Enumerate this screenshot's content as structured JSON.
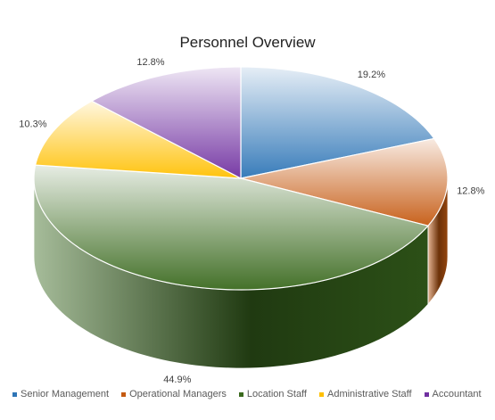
{
  "chart_data": {
    "type": "pie",
    "style": "3d-gradient",
    "title": "Personnel Overview",
    "categories": [
      "Senior Management",
      "Operational Managers",
      "Location Staff",
      "Administrative Staff",
      "Accountant"
    ],
    "values": [
      19.2,
      12.8,
      44.9,
      10.3,
      12.8
    ],
    "labels": [
      "19.2%",
      "12.8%",
      "44.9%",
      "10.3%",
      "12.8%"
    ],
    "colors": [
      "#2e75b6",
      "#c55a11",
      "#3a6a1e",
      "#ffc000",
      "#7030a0"
    ],
    "legend_position": "bottom"
  }
}
